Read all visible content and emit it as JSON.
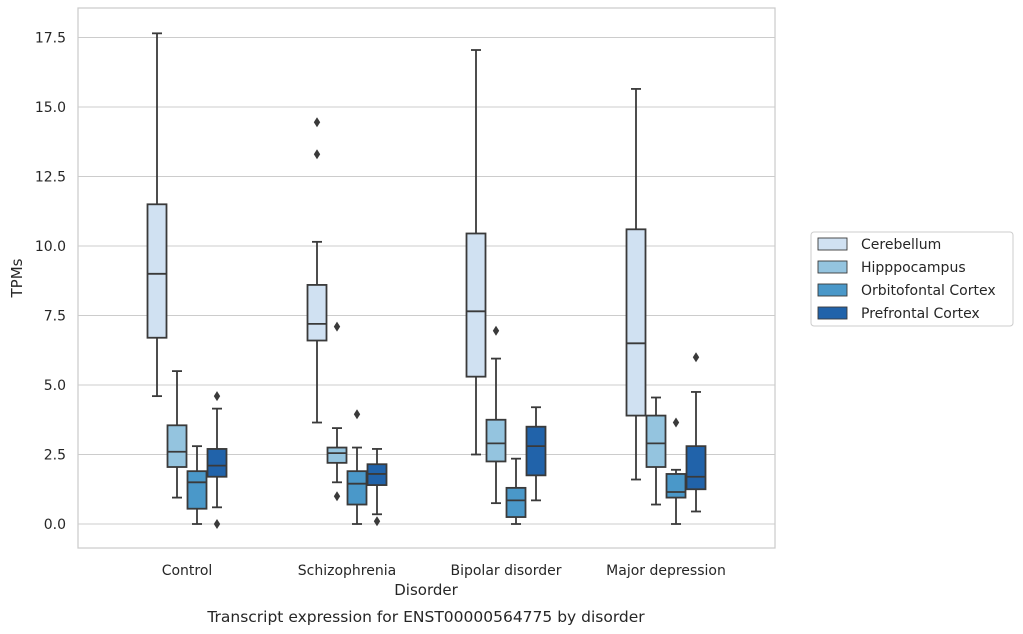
{
  "chart_data": {
    "type": "box",
    "caption": "Transcript expression for ENST00000564775 by disorder",
    "xlabel": "Disorder",
    "ylabel": "TPMs",
    "ylim": [
      -0.8,
      18.5
    ],
    "yticks": [
      0.0,
      2.5,
      5.0,
      7.5,
      10.0,
      12.5,
      15.0,
      17.5
    ],
    "ytick_labels": [
      "0.0",
      "2.5",
      "5.0",
      "7.5",
      "10.0",
      "12.5",
      "15.0",
      "17.5"
    ],
    "grid": true,
    "legend_position": "right",
    "categories": [
      "Control",
      "Schizophrenia",
      "Bipolar disorder",
      "Major depression"
    ],
    "series": [
      {
        "name": "Cerebellum",
        "color": "#d0e1f2",
        "boxes": [
          {
            "whisker_low": 4.6,
            "q1": 6.7,
            "median": 9.0,
            "q3": 11.5,
            "whisker_high": 17.65,
            "outliers": []
          },
          {
            "whisker_low": 3.65,
            "q1": 6.6,
            "median": 7.2,
            "q3": 8.6,
            "whisker_high": 10.15,
            "outliers": [
              14.45,
              13.3
            ]
          },
          {
            "whisker_low": 2.5,
            "q1": 5.3,
            "median": 7.65,
            "q3": 10.45,
            "whisker_high": 17.05,
            "outliers": []
          },
          {
            "whisker_low": 1.6,
            "q1": 3.9,
            "median": 6.5,
            "q3": 10.6,
            "whisker_high": 15.65,
            "outliers": []
          }
        ]
      },
      {
        "name": "Hipppocampus",
        "color": "#94c4df",
        "boxes": [
          {
            "whisker_low": 0.95,
            "q1": 2.05,
            "median": 2.6,
            "q3": 3.55,
            "whisker_high": 5.5,
            "outliers": []
          },
          {
            "whisker_low": 1.5,
            "q1": 2.2,
            "median": 2.55,
            "q3": 2.75,
            "whisker_high": 3.45,
            "outliers": [
              7.1,
              1.0
            ]
          },
          {
            "whisker_low": 0.75,
            "q1": 2.25,
            "median": 2.9,
            "q3": 3.75,
            "whisker_high": 5.95,
            "outliers": [
              6.95
            ]
          },
          {
            "whisker_low": 0.7,
            "q1": 2.05,
            "median": 2.9,
            "q3": 3.9,
            "whisker_high": 4.55,
            "outliers": []
          }
        ]
      },
      {
        "name": "Orbitofontal Cortex",
        "color": "#4a98c9",
        "boxes": [
          {
            "whisker_low": 0.0,
            "q1": 0.55,
            "median": 1.5,
            "q3": 1.9,
            "whisker_high": 2.8,
            "outliers": []
          },
          {
            "whisker_low": 0.0,
            "q1": 0.7,
            "median": 1.45,
            "q3": 1.9,
            "whisker_high": 2.75,
            "outliers": [
              3.95
            ]
          },
          {
            "whisker_low": 0.0,
            "q1": 0.25,
            "median": 0.85,
            "q3": 1.3,
            "whisker_high": 2.35,
            "outliers": []
          },
          {
            "whisker_low": 0.0,
            "q1": 0.95,
            "median": 1.15,
            "q3": 1.8,
            "whisker_high": 1.95,
            "outliers": [
              3.65
            ]
          }
        ]
      },
      {
        "name": "Prefrontal Cortex",
        "color": "#2163aa",
        "boxes": [
          {
            "whisker_low": 0.6,
            "q1": 1.7,
            "median": 2.1,
            "q3": 2.7,
            "whisker_high": 4.15,
            "outliers": [
              4.6,
              0.0
            ]
          },
          {
            "whisker_low": 0.35,
            "q1": 1.4,
            "median": 1.8,
            "q3": 2.15,
            "whisker_high": 2.7,
            "outliers": [
              0.1
            ]
          },
          {
            "whisker_low": 0.85,
            "q1": 1.75,
            "median": 2.8,
            "q3": 3.5,
            "whisker_high": 4.2,
            "outliers": []
          },
          {
            "whisker_low": 0.45,
            "q1": 1.25,
            "median": 1.7,
            "q3": 2.8,
            "whisker_high": 4.75,
            "outliers": [
              6.0
            ]
          }
        ]
      }
    ]
  }
}
